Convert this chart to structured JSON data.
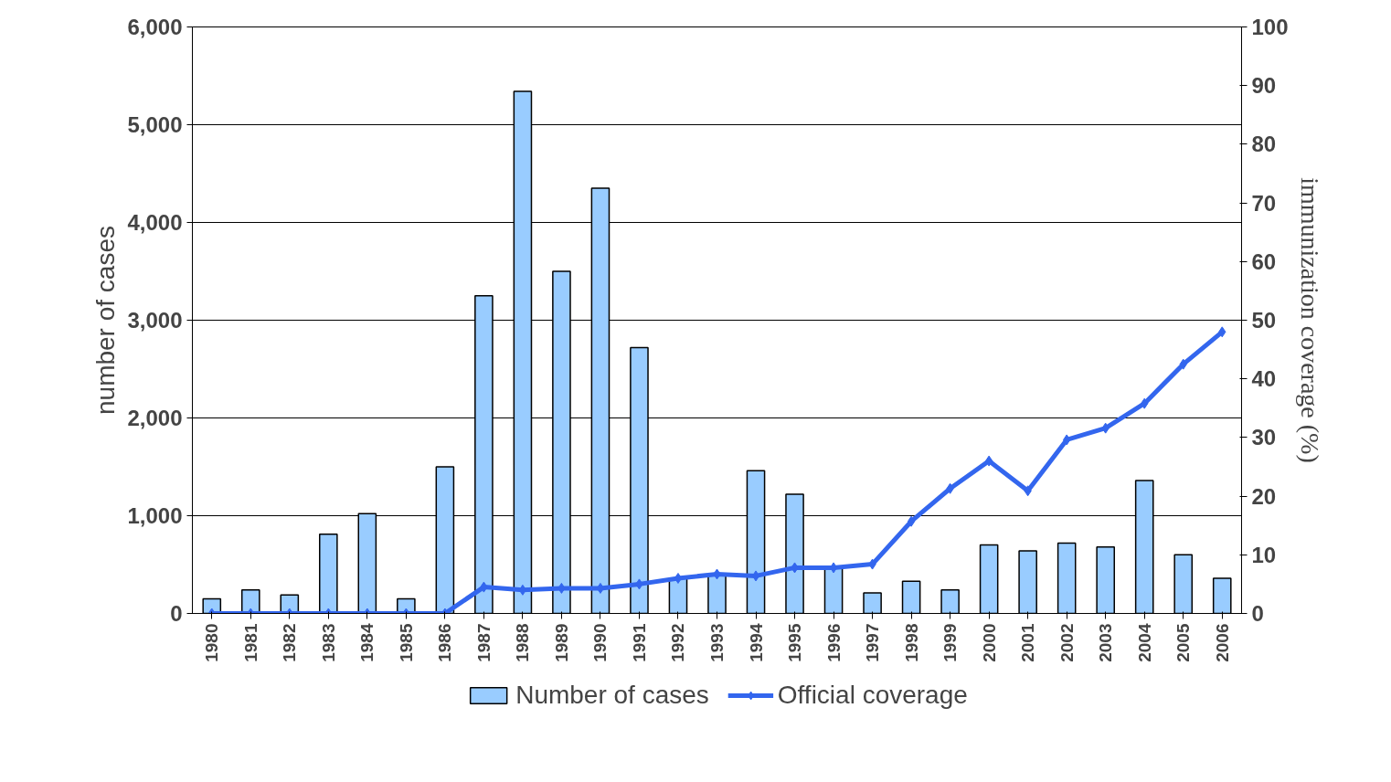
{
  "chart_data": {
    "type": "line",
    "ylabel": "number of cases",
    "y2label": "immunization coverage (%)",
    "categories": [
      "1980",
      "1981",
      "1982",
      "1983",
      "1984",
      "1985",
      "1986",
      "1987",
      "1988",
      "1989",
      "1990",
      "1991",
      "1992",
      "1993",
      "1994",
      "1995",
      "1996",
      "1997",
      "1998",
      "1999",
      "2000",
      "2001",
      "2002",
      "2003",
      "2004",
      "2005",
      "2006"
    ],
    "series": [
      {
        "name": "Number of cases",
        "type": "bar",
        "color": "#99ccff",
        "values": [
          150,
          240,
          190,
          810,
          1020,
          150,
          1500,
          3250,
          5340,
          3500,
          4350,
          2720,
          360,
          400,
          1460,
          1220,
          460,
          210,
          330,
          240,
          700,
          640,
          720,
          680,
          1360,
          600,
          360
        ]
      },
      {
        "name": "Official coverage",
        "axis": "y2",
        "color": "#3366ee",
        "values": [
          0,
          0,
          0,
          0,
          0,
          0,
          0,
          4.5,
          4,
          4.3,
          4.3,
          5,
          6,
          6.7,
          6.4,
          7.8,
          7.8,
          8.4,
          15.7,
          21.3,
          26,
          20.9,
          29.6,
          31.6,
          35.8,
          42.5,
          48
        ]
      }
    ],
    "ylim": [
      0,
      6000
    ],
    "yticks": [
      0,
      {
        "value": 1000,
        "label": "1,000"
      },
      {
        "value": 2000,
        "label": "2,000"
      },
      {
        "value": 3000,
        "label": "3,000"
      },
      {
        "value": 4000,
        "label": "4,000"
      },
      {
        "value": 5000,
        "label": "5,000"
      },
      {
        "value": 6000,
        "label": "6,000"
      }
    ],
    "y2lim": [
      0,
      100
    ],
    "y2ticks": [
      0,
      10,
      20,
      30,
      40,
      50,
      60,
      70,
      80,
      90,
      100
    ],
    "grid": "y",
    "legend": "bottom",
    "marker": "diamond",
    "line_style": "solid"
  }
}
